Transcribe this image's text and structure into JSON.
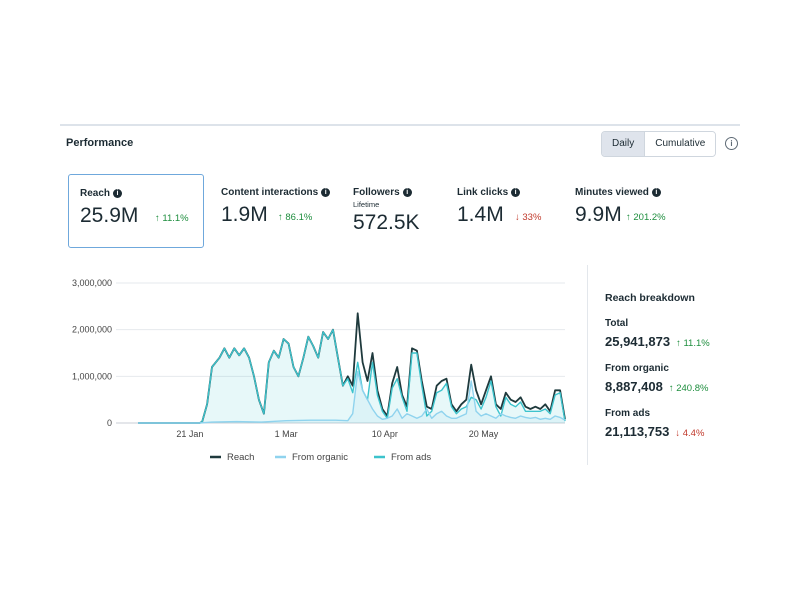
{
  "header": {
    "title": "Performance",
    "toggle": [
      {
        "label": "Daily",
        "active": true
      },
      {
        "label": "Cumulative",
        "active": false
      }
    ],
    "info_icon": "info-circle-icon"
  },
  "metrics": [
    {
      "label": "Reach",
      "sublabel": "",
      "value": "25.9M",
      "delta": "11.1%",
      "direction": "up"
    },
    {
      "label": "Content interactions",
      "sublabel": "",
      "value": "1.9M",
      "delta": "86.1%",
      "direction": "up"
    },
    {
      "label": "Followers",
      "sublabel": "Lifetime",
      "value": "572.5K",
      "delta": "",
      "direction": ""
    },
    {
      "label": "Link clicks",
      "sublabel": "",
      "value": "1.4M",
      "delta": "33%",
      "direction": "down"
    },
    {
      "label": "Minutes viewed",
      "sublabel": "",
      "value": "9.9M",
      "delta": "201.2%",
      "direction": "up"
    }
  ],
  "breakdown": {
    "title": "Reach breakdown",
    "items": [
      {
        "label": "Total",
        "value": "25,941,873",
        "delta": "11.1%",
        "direction": "up"
      },
      {
        "label": "From organic",
        "value": "8,887,408",
        "delta": "240.8%",
        "direction": "up"
      },
      {
        "label": "From ads",
        "value": "21,113,753",
        "delta": "4.4%",
        "direction": "down"
      }
    ]
  },
  "colors": {
    "reach": "#1f3a3d",
    "organic": "#8fd3ee",
    "ads": "#3cc3cc",
    "up": "#1e8e3e",
    "down": "#c0392b",
    "selected_border": "#6fa8dc"
  },
  "chart_data": {
    "type": "line",
    "y_ticks": [
      "3,000,000",
      "2,000,000",
      "1,000,000",
      "0"
    ],
    "ylim": [
      0,
      3000000
    ],
    "x_ticks": [
      "21 Jan",
      "1 Mar",
      "10 Apr",
      "20 May"
    ],
    "x_tick_days": [
      21,
      60,
      100,
      140
    ],
    "xlim": [
      0,
      173
    ],
    "grid": true,
    "legend": "bottom",
    "series": [
      {
        "name": "Reach",
        "points": [
          [
            0,
            0
          ],
          [
            20,
            0
          ],
          [
            25,
            0
          ],
          [
            26,
            30000
          ],
          [
            28,
            400000
          ],
          [
            30,
            1200000
          ],
          [
            33,
            1400000
          ],
          [
            35,
            1600000
          ],
          [
            37,
            1400000
          ],
          [
            39,
            1600000
          ],
          [
            41,
            1450000
          ],
          [
            43,
            1600000
          ],
          [
            45,
            1400000
          ],
          [
            47,
            1000000
          ],
          [
            49,
            500000
          ],
          [
            51,
            200000
          ],
          [
            53,
            1300000
          ],
          [
            55,
            1550000
          ],
          [
            57,
            1400000
          ],
          [
            59,
            1800000
          ],
          [
            61,
            1700000
          ],
          [
            63,
            1200000
          ],
          [
            65,
            1000000
          ],
          [
            67,
            1400000
          ],
          [
            69,
            1850000
          ],
          [
            71,
            1650000
          ],
          [
            73,
            1400000
          ],
          [
            75,
            1950000
          ],
          [
            77,
            1800000
          ],
          [
            79,
            2000000
          ],
          [
            81,
            1400000
          ],
          [
            83,
            800000
          ],
          [
            85,
            1000000
          ],
          [
            87,
            800000
          ],
          [
            89,
            2350000
          ],
          [
            91,
            1300000
          ],
          [
            93,
            900000
          ],
          [
            95,
            1500000
          ],
          [
            97,
            700000
          ],
          [
            99,
            300000
          ],
          [
            101,
            150000
          ],
          [
            103,
            850000
          ],
          [
            105,
            1200000
          ],
          [
            107,
            600000
          ],
          [
            109,
            350000
          ],
          [
            111,
            1600000
          ],
          [
            113,
            1550000
          ],
          [
            115,
            900000
          ],
          [
            117,
            350000
          ],
          [
            119,
            300000
          ],
          [
            121,
            800000
          ],
          [
            123,
            900000
          ],
          [
            125,
            950000
          ],
          [
            127,
            400000
          ],
          [
            129,
            250000
          ],
          [
            131,
            400000
          ],
          [
            133,
            500000
          ],
          [
            135,
            1250000
          ],
          [
            137,
            700000
          ],
          [
            139,
            400000
          ],
          [
            141,
            700000
          ],
          [
            143,
            1000000
          ],
          [
            145,
            400000
          ],
          [
            147,
            300000
          ],
          [
            149,
            650000
          ],
          [
            151,
            500000
          ],
          [
            153,
            450000
          ],
          [
            155,
            550000
          ],
          [
            157,
            350000
          ],
          [
            159,
            300000
          ],
          [
            161,
            350000
          ],
          [
            163,
            300000
          ],
          [
            165,
            400000
          ],
          [
            167,
            250000
          ],
          [
            169,
            700000
          ],
          [
            171,
            700000
          ],
          [
            173,
            80000
          ]
        ]
      },
      {
        "name": "From organic",
        "points": [
          [
            0,
            0
          ],
          [
            25,
            0
          ],
          [
            30,
            20000
          ],
          [
            40,
            30000
          ],
          [
            50,
            20000
          ],
          [
            60,
            50000
          ],
          [
            70,
            60000
          ],
          [
            80,
            60000
          ],
          [
            85,
            50000
          ],
          [
            87,
            200000
          ],
          [
            89,
            1100000
          ],
          [
            91,
            700000
          ],
          [
            93,
            500000
          ],
          [
            95,
            300000
          ],
          [
            97,
            150000
          ],
          [
            99,
            80000
          ],
          [
            101,
            100000
          ],
          [
            103,
            150000
          ],
          [
            105,
            300000
          ],
          [
            107,
            100000
          ],
          [
            109,
            200000
          ],
          [
            111,
            150000
          ],
          [
            113,
            100000
          ],
          [
            115,
            150000
          ],
          [
            117,
            300000
          ],
          [
            119,
            100000
          ],
          [
            121,
            200000
          ],
          [
            123,
            250000
          ],
          [
            125,
            150000
          ],
          [
            127,
            100000
          ],
          [
            129,
            100000
          ],
          [
            131,
            150000
          ],
          [
            133,
            200000
          ],
          [
            135,
            900000
          ],
          [
            137,
            250000
          ],
          [
            139,
            150000
          ],
          [
            141,
            200000
          ],
          [
            143,
            150000
          ],
          [
            145,
            100000
          ],
          [
            147,
            200000
          ],
          [
            149,
            150000
          ],
          [
            151,
            120000
          ],
          [
            153,
            100000
          ],
          [
            155,
            150000
          ],
          [
            157,
            120000
          ],
          [
            159,
            100000
          ],
          [
            161,
            120000
          ],
          [
            163,
            80000
          ],
          [
            165,
            100000
          ],
          [
            167,
            80000
          ],
          [
            169,
            150000
          ],
          [
            171,
            120000
          ],
          [
            173,
            60000
          ]
        ]
      },
      {
        "name": "From ads",
        "points": [
          [
            0,
            0
          ],
          [
            20,
            0
          ],
          [
            25,
            0
          ],
          [
            26,
            30000
          ],
          [
            28,
            400000
          ],
          [
            30,
            1200000
          ],
          [
            33,
            1400000
          ],
          [
            35,
            1600000
          ],
          [
            37,
            1400000
          ],
          [
            39,
            1600000
          ],
          [
            41,
            1450000
          ],
          [
            43,
            1600000
          ],
          [
            45,
            1400000
          ],
          [
            47,
            1000000
          ],
          [
            49,
            500000
          ],
          [
            51,
            200000
          ],
          [
            53,
            1300000
          ],
          [
            55,
            1550000
          ],
          [
            57,
            1400000
          ],
          [
            59,
            1800000
          ],
          [
            61,
            1700000
          ],
          [
            63,
            1200000
          ],
          [
            65,
            1000000
          ],
          [
            67,
            1400000
          ],
          [
            69,
            1850000
          ],
          [
            71,
            1650000
          ],
          [
            73,
            1400000
          ],
          [
            75,
            1950000
          ],
          [
            77,
            1800000
          ],
          [
            79,
            2000000
          ],
          [
            81,
            1400000
          ],
          [
            83,
            800000
          ],
          [
            85,
            950000
          ],
          [
            87,
            650000
          ],
          [
            89,
            1300000
          ],
          [
            91,
            700000
          ],
          [
            93,
            500000
          ],
          [
            95,
            1300000
          ],
          [
            97,
            600000
          ],
          [
            99,
            250000
          ],
          [
            101,
            100000
          ],
          [
            103,
            750000
          ],
          [
            105,
            950000
          ],
          [
            107,
            550000
          ],
          [
            109,
            250000
          ],
          [
            111,
            1500000
          ],
          [
            113,
            1500000
          ],
          [
            115,
            800000
          ],
          [
            117,
            150000
          ],
          [
            119,
            250000
          ],
          [
            121,
            650000
          ],
          [
            123,
            700000
          ],
          [
            125,
            850000
          ],
          [
            127,
            350000
          ],
          [
            129,
            200000
          ],
          [
            131,
            300000
          ],
          [
            133,
            350000
          ],
          [
            135,
            550000
          ],
          [
            137,
            500000
          ],
          [
            139,
            300000
          ],
          [
            141,
            550000
          ],
          [
            143,
            900000
          ],
          [
            145,
            350000
          ],
          [
            147,
            150000
          ],
          [
            149,
            550000
          ],
          [
            151,
            400000
          ],
          [
            153,
            350000
          ],
          [
            155,
            450000
          ],
          [
            157,
            250000
          ],
          [
            159,
            250000
          ],
          [
            161,
            250000
          ],
          [
            163,
            250000
          ],
          [
            165,
            300000
          ],
          [
            167,
            200000
          ],
          [
            169,
            600000
          ],
          [
            171,
            650000
          ],
          [
            173,
            40000
          ]
        ]
      }
    ]
  }
}
